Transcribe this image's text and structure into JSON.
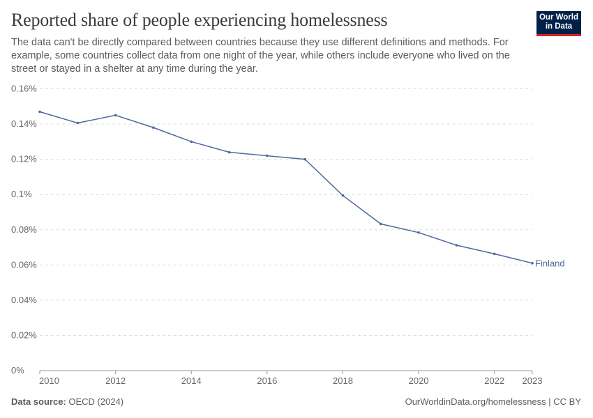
{
  "header": {
    "title": "Reported share of people experiencing homelessness",
    "subtitle": "The data can't be directly compared between countries because they use different definitions and methods. For example, some countries collect data from one night of the year, while others include everyone who lived on the street or stayed in a shelter at any time during the year.",
    "logo_line1": "Our World",
    "logo_line2": "in Data"
  },
  "footer": {
    "source_label": "Data source:",
    "source": "OECD (2024)",
    "url": "OurWorldinData.org/homelessness | CC BY"
  },
  "chart_data": {
    "type": "line",
    "title": "Reported share of people experiencing homelessness",
    "xlabel": "",
    "ylabel": "",
    "ylim": [
      0,
      0.16
    ],
    "xlim": [
      2010,
      2023
    ],
    "grid": true,
    "y_ticks": [
      "0%",
      "0.02%",
      "0.04%",
      "0.06%",
      "0.08%",
      "0.1%",
      "0.12%",
      "0.14%",
      "0.16%"
    ],
    "y_tick_values": [
      0,
      0.02,
      0.04,
      0.06,
      0.08,
      0.1,
      0.12,
      0.14,
      0.16
    ],
    "x_ticks": [
      "2010",
      "2012",
      "2014",
      "2016",
      "2018",
      "2020",
      "2022",
      "2023"
    ],
    "x_tick_values": [
      2010,
      2012,
      2014,
      2016,
      2018,
      2020,
      2022,
      2023
    ],
    "series": [
      {
        "name": "Finland",
        "color": "#4c6a9c",
        "x": [
          2010,
          2011,
          2012,
          2013,
          2014,
          2015,
          2016,
          2017,
          2018,
          2019,
          2020,
          2021,
          2022,
          2023
        ],
        "values": [
          0.147,
          0.1406,
          0.145,
          0.138,
          0.13,
          0.124,
          0.122,
          0.12,
          0.0994,
          0.0833,
          0.0784,
          0.0712,
          0.0663,
          0.061
        ]
      }
    ]
  }
}
